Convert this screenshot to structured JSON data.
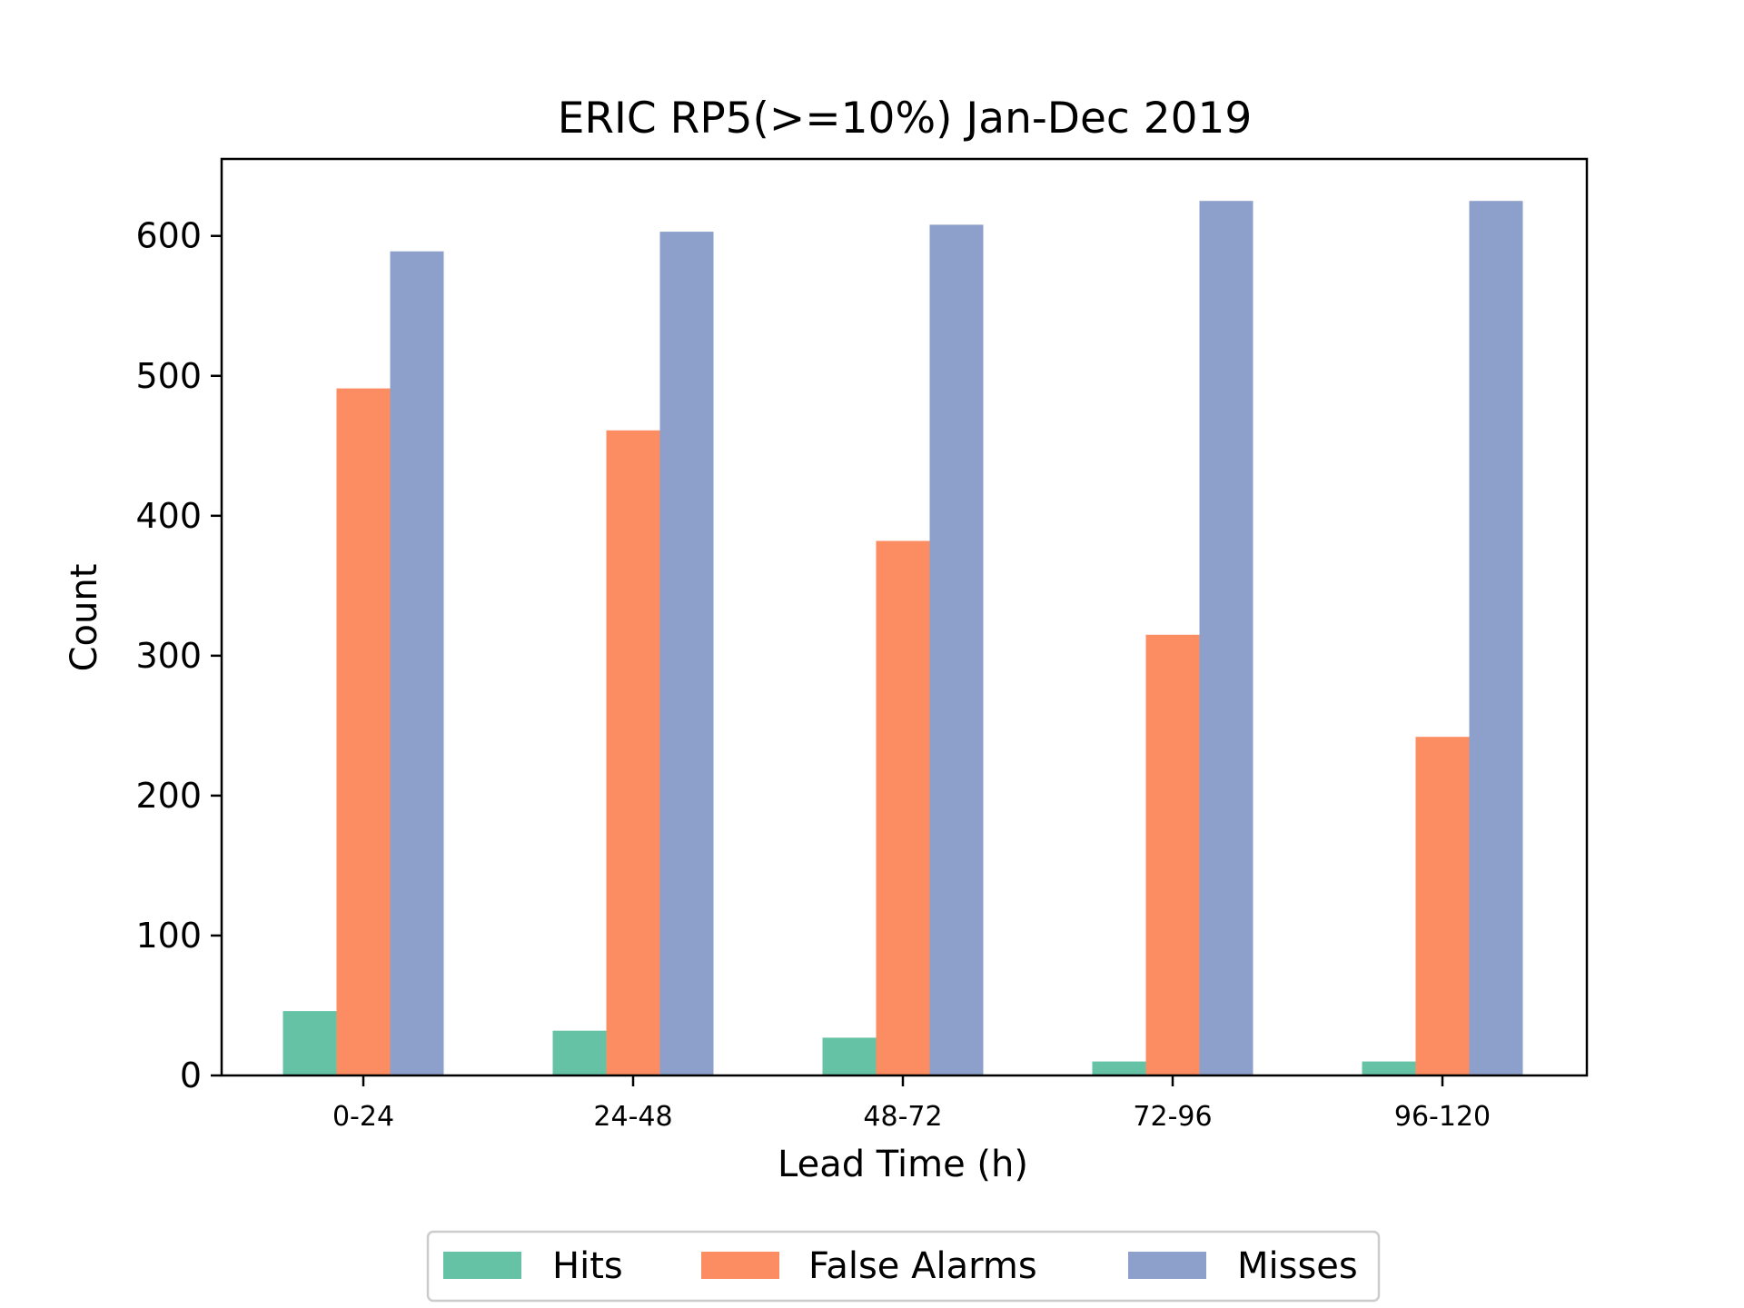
{
  "chart_data": {
    "type": "bar",
    "title": "ERIC RP5(>=10%) Jan-Dec 2019",
    "xlabel": "Lead Time (h)",
    "ylabel": "Count",
    "categories": [
      "0-24",
      "24-48",
      "48-72",
      "72-96",
      "96-120"
    ],
    "ylim": [
      0,
      655
    ],
    "yticks": [
      0,
      100,
      200,
      300,
      400,
      500,
      600
    ],
    "grid": false,
    "legend_position": "bottom-center",
    "series": [
      {
        "name": "Hits",
        "color": "#66c2a5",
        "values": [
          46,
          32,
          27,
          10,
          10
        ]
      },
      {
        "name": "False Alarms",
        "color": "#fc8d62",
        "values": [
          491,
          461,
          382,
          315,
          242
        ]
      },
      {
        "name": "Misses",
        "color": "#8da0cb",
        "values": [
          589,
          603,
          608,
          625,
          625
        ]
      }
    ]
  }
}
